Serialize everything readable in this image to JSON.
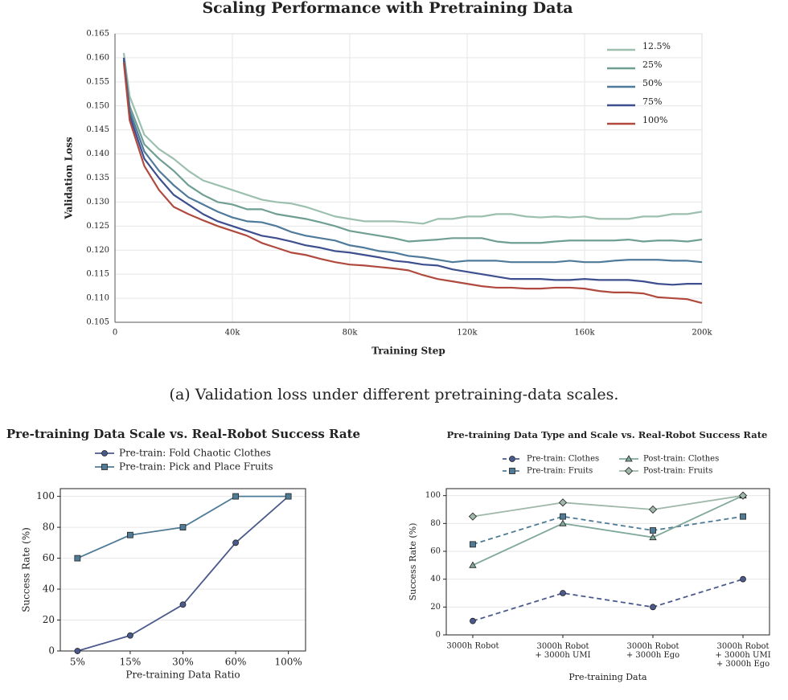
{
  "chart_data": [
    {
      "type": "line",
      "title": "Scaling Performance with Pretraining Data",
      "xlabel": "Training Step",
      "ylabel": "Validation Loss",
      "x": [
        3000,
        5000,
        10000,
        15000,
        20000,
        25000,
        30000,
        35000,
        40000,
        45000,
        50000,
        55000,
        60000,
        65000,
        70000,
        75000,
        80000,
        85000,
        90000,
        95000,
        100000,
        105000,
        110000,
        115000,
        120000,
        125000,
        130000,
        135000,
        140000,
        145000,
        150000,
        155000,
        160000,
        165000,
        170000,
        175000,
        180000,
        185000,
        190000,
        195000,
        200000
      ],
      "xlim": [
        0,
        200000
      ],
      "xticks": [
        0,
        {
          "value": 40000,
          "label": "40k"
        },
        {
          "value": 80000,
          "label": "80k"
        },
        {
          "value": 120000,
          "label": "120k"
        },
        {
          "value": 160000,
          "label": "160k"
        },
        {
          "value": 200000,
          "label": "200k"
        }
      ],
      "ylim": [
        0.105,
        0.165
      ],
      "yticks": [
        0.105,
        {
          "value": 0.11,
          "label": "0.110"
        },
        0.115,
        {
          "value": 0.12,
          "label": "0.120"
        },
        0.125,
        {
          "value": 0.13,
          "label": "0.130"
        },
        0.135,
        {
          "value": 0.14,
          "label": "0.140"
        },
        0.145,
        {
          "value": 0.15,
          "label": "0.150"
        },
        0.155,
        {
          "value": 0.16,
          "label": "0.160"
        },
        0.165
      ],
      "grid": true,
      "legend": "upper right",
      "series": [
        {
          "name": "12.5%",
          "color": "#9cbfae",
          "values": [
            0.161,
            0.152,
            0.144,
            0.141,
            0.139,
            0.1365,
            0.1345,
            0.1335,
            0.1325,
            0.1315,
            0.1305,
            0.13,
            0.1297,
            0.129,
            0.128,
            0.127,
            0.1265,
            0.126,
            0.126,
            0.126,
            0.1258,
            0.1255,
            0.1265,
            0.1265,
            0.127,
            0.127,
            0.1275,
            0.1275,
            0.127,
            0.1268,
            0.127,
            0.1268,
            0.127,
            0.1265,
            0.1265,
            0.1265,
            0.127,
            0.127,
            0.1275,
            0.1275,
            0.128
          ]
        },
        {
          "name": "25%",
          "color": "#6f9e92",
          "values": [
            0.16,
            0.15,
            0.142,
            0.139,
            0.1365,
            0.1335,
            0.1315,
            0.13,
            0.1295,
            0.1285,
            0.1285,
            0.1275,
            0.127,
            0.1265,
            0.1258,
            0.125,
            0.124,
            0.1235,
            0.123,
            0.1225,
            0.1218,
            0.122,
            0.1222,
            0.1225,
            0.1225,
            0.1225,
            0.1218,
            0.1215,
            0.1215,
            0.1215,
            0.1218,
            0.122,
            0.122,
            0.122,
            0.122,
            0.1222,
            0.1218,
            0.122,
            0.122,
            0.1218,
            0.1222
          ]
        },
        {
          "name": "50%",
          "color": "#4f7a9a",
          "values": [
            0.1595,
            0.149,
            0.1405,
            0.1365,
            0.1335,
            0.131,
            0.1295,
            0.128,
            0.1268,
            0.126,
            0.1258,
            0.125,
            0.1238,
            0.123,
            0.1225,
            0.122,
            0.121,
            0.1205,
            0.1198,
            0.1195,
            0.1188,
            0.1185,
            0.118,
            0.1175,
            0.1178,
            0.1178,
            0.1178,
            0.1175,
            0.1175,
            0.1175,
            0.1175,
            0.1178,
            0.1175,
            0.1175,
            0.1178,
            0.118,
            0.118,
            0.118,
            0.1178,
            0.1178,
            0.1175
          ]
        },
        {
          "name": "75%",
          "color": "#3d4f8f",
          "values": [
            0.16,
            0.148,
            0.139,
            0.135,
            0.1315,
            0.1295,
            0.1275,
            0.126,
            0.125,
            0.124,
            0.123,
            0.1225,
            0.1218,
            0.121,
            0.1205,
            0.1198,
            0.1195,
            0.119,
            0.1185,
            0.1178,
            0.1175,
            0.117,
            0.1168,
            0.116,
            0.1155,
            0.115,
            0.1145,
            0.114,
            0.114,
            0.114,
            0.1138,
            0.1138,
            0.114,
            0.1138,
            0.1138,
            0.1138,
            0.1135,
            0.113,
            0.1128,
            0.113,
            0.113
          ]
        },
        {
          "name": "100%",
          "color": "#b04a3e",
          "values": [
            0.159,
            0.147,
            0.1375,
            0.1325,
            0.129,
            0.1275,
            0.1262,
            0.125,
            0.124,
            0.123,
            0.1215,
            0.1205,
            0.1195,
            0.119,
            0.1182,
            0.1175,
            0.117,
            0.1168,
            0.1165,
            0.1162,
            0.1158,
            0.1148,
            0.114,
            0.1135,
            0.113,
            0.1125,
            0.1122,
            0.1122,
            0.112,
            0.112,
            0.1122,
            0.1122,
            0.112,
            0.1115,
            0.1112,
            0.1112,
            0.111,
            0.1102,
            0.11,
            0.1098,
            0.109
          ]
        }
      ]
    },
    {
      "type": "line",
      "title": "Pre-training Data Scale vs. Real-Robot Success Rate",
      "xlabel": "Pre-training Data Ratio",
      "ylabel": "Success Rate (%)",
      "categories": [
        "5%",
        "15%",
        "30%",
        "60%",
        "100%"
      ],
      "ylim": [
        0,
        105
      ],
      "yticks": [
        0,
        20,
        40,
        60,
        80,
        100
      ],
      "grid": true,
      "legend": "upper center",
      "series": [
        {
          "name": "Pre-train: Fold Chaotic Clothes",
          "color": "#4a5a8c",
          "marker": "circle",
          "dash": false,
          "values": [
            0,
            10,
            30,
            70,
            100
          ]
        },
        {
          "name": "Pre-train: Pick and Place Fruits",
          "color": "#4f7b96",
          "marker": "square",
          "dash": false,
          "values": [
            60,
            75,
            80,
            100,
            100
          ]
        }
      ]
    },
    {
      "type": "line",
      "title": "Pre-training Data Type and Scale vs. Real-Robot Success Rate",
      "xlabel": "Pre-training Data",
      "ylabel": "Success Rate (%)",
      "categories": [
        "3000h Robot",
        "3000h Robot\n+ 3000h UMI",
        "3000h Robot\n+ 3000h Ego",
        "3000h Robot\n+ 3000h UMI\n+ 3000h Ego"
      ],
      "ylim": [
        0,
        105
      ],
      "yticks": [
        0,
        20,
        40,
        60,
        80,
        100
      ],
      "grid": true,
      "legend": "upper center",
      "series": [
        {
          "name": "Pre-train: Clothes",
          "color": "#4a5a8c",
          "marker": "circle",
          "dash": true,
          "values": [
            10,
            30,
            20,
            40
          ]
        },
        {
          "name": "Pre-train: Fruits",
          "color": "#4f7b96",
          "marker": "square",
          "dash": true,
          "values": [
            65,
            85,
            75,
            85
          ]
        },
        {
          "name": "Post-train: Clothes",
          "color": "#7fa89a",
          "marker": "triangle",
          "dash": false,
          "values": [
            50,
            80,
            70,
            100
          ]
        },
        {
          "name": "Post-train: Fruits",
          "color": "#9fb8aa",
          "marker": "diamond",
          "dash": false,
          "values": [
            85,
            95,
            90,
            100
          ]
        }
      ]
    }
  ],
  "caption": "(a) Validation loss under different pretraining-data scales."
}
